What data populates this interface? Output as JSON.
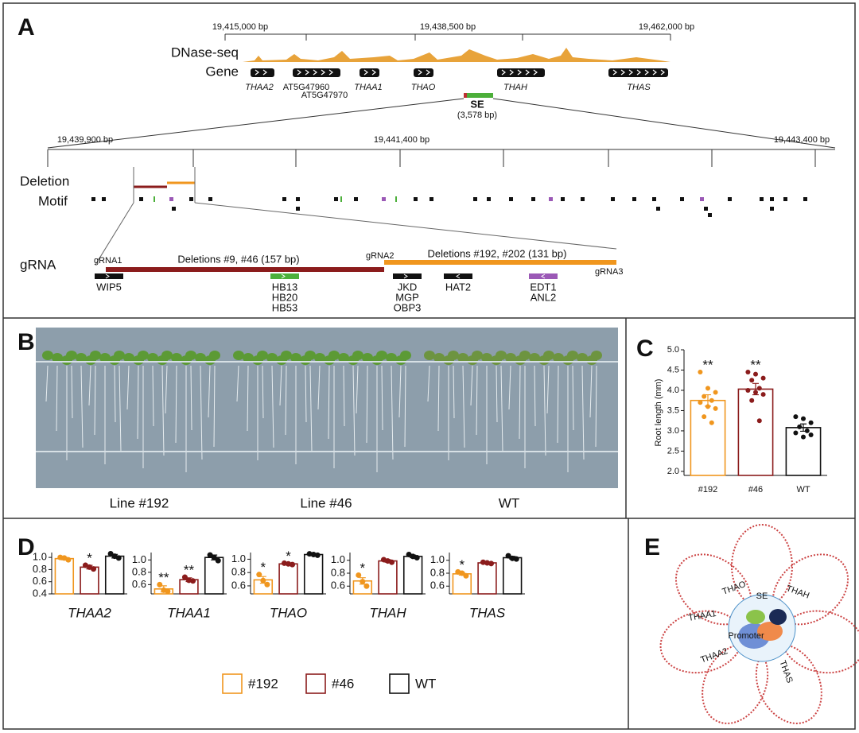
{
  "panel_labels": [
    "A",
    "B",
    "C",
    "D",
    "E"
  ],
  "panel_a": {
    "scale1": [
      "19,415,000 bp",
      "19,438,500 bp",
      "19,462,000 bp"
    ],
    "track_labels": [
      "DNase-seq",
      "Gene"
    ],
    "genes": [
      "THAA2",
      "AT5G47960",
      "AT5G47970",
      "THAA1",
      "THAO",
      "THAH",
      "THAS"
    ],
    "se": {
      "label": "SE",
      "size": "(3,578 bp)"
    },
    "scale2": [
      "19,439,900 bp",
      "19,441,400 bp",
      "19,443,400 bp"
    ],
    "row_labels": [
      "Deletion",
      "Motif",
      "gRNA"
    ],
    "grnas": [
      "gRNA1",
      "gRNA2",
      "gRNA3"
    ],
    "deletions": [
      "Deletions #9, #46 (157 bp)",
      "Deletions #192, #202 (131 bp)"
    ],
    "motifs": [
      [
        "WIP5"
      ],
      [
        "HB13",
        "HB20",
        "HB53"
      ],
      [
        "JKD",
        "MGP",
        "OBP3"
      ],
      [
        "HAT2"
      ],
      [
        "EDT1",
        "ANL2"
      ]
    ]
  },
  "panel_b": {
    "labels": [
      "Line #192",
      "Line #46",
      "WT"
    ]
  },
  "legend": [
    {
      "name": "#192",
      "color": "#f0961e"
    },
    {
      "name": "#46",
      "color": "#8b1c1c"
    },
    {
      "name": "WT",
      "color": "#111111"
    }
  ],
  "chart_data": [
    {
      "type": "bar",
      "categories": [
        "#192",
        "#46",
        "WT"
      ],
      "y_label": "Root length (mm)",
      "values": [
        3.75,
        4.03,
        3.08
      ],
      "errors": [
        0.14,
        0.14,
        0.09
      ],
      "points": [
        [
          4.45,
          4.05,
          3.95,
          3.85,
          3.75,
          3.7,
          3.6,
          3.55,
          3.35,
          3.2
        ],
        [
          4.45,
          4.4,
          4.3,
          4.25,
          4.05,
          4.0,
          3.95,
          3.9,
          3.75,
          3.25
        ],
        [
          3.35,
          3.3,
          3.2,
          3.1,
          3.0,
          2.95,
          2.85,
          2.9
        ]
      ],
      "annotations": [
        "**",
        "**",
        null
      ],
      "ylim": [
        1.9,
        5.0
      ],
      "yticks": [
        {
          "value": 2,
          "label": "2.0"
        },
        {
          "value": 2.5,
          "label": "2.5"
        },
        {
          "value": 3,
          "label": "3.0"
        },
        {
          "value": 3.5,
          "label": "3.5"
        },
        {
          "value": 4,
          "label": "4.0"
        },
        {
          "value": 4.5,
          "label": "4.5"
        },
        {
          "value": 5,
          "label": "5.0"
        }
      ]
    },
    {
      "type": "bar",
      "title": "THAA2",
      "categories": [
        null,
        null,
        null
      ],
      "values": [
        0.98,
        0.84,
        1.02
      ],
      "errors": [
        0.02,
        0.03,
        0.03
      ],
      "points": [
        [
          1.0,
          0.99,
          0.96
        ],
        [
          0.87,
          0.84,
          0.81
        ],
        [
          1.06,
          1.02,
          0.99
        ]
      ],
      "annotations": [
        null,
        "*",
        null
      ],
      "ylim": [
        0.4,
        1.08
      ],
      "yticks": [
        0.4,
        0.6,
        0.8,
        {
          "value": 1,
          "label": "1.0"
        }
      ]
    },
    {
      "type": "bar",
      "title": "THAA1",
      "categories": [
        null,
        null,
        null
      ],
      "values": [
        0.53,
        0.68,
        1.04
      ],
      "errors": [
        0.05,
        0.03,
        0.04
      ],
      "points": [
        [
          0.6,
          0.51,
          0.49
        ],
        [
          0.72,
          0.67,
          0.66
        ],
        [
          1.08,
          1.04,
          0.99
        ]
      ],
      "annotations": [
        "**",
        "**",
        null
      ],
      "ylim": [
        0.45,
        1.12
      ],
      "yticks": [
        0.6,
        0.8,
        {
          "value": 1,
          "label": "1.0"
        }
      ]
    },
    {
      "type": "bar",
      "title": "THAO",
      "categories": [
        null,
        null,
        null
      ],
      "values": [
        0.69,
        0.93,
        1.07
      ],
      "errors": [
        0.05,
        0.01,
        0.01
      ],
      "points": [
        [
          0.77,
          0.68,
          0.62
        ],
        [
          0.94,
          0.93,
          0.92
        ],
        [
          1.08,
          1.07,
          1.06
        ]
      ],
      "annotations": [
        "*",
        "*",
        null
      ],
      "ylim": [
        0.48,
        1.1
      ],
      "yticks": [
        0.6,
        0.8,
        {
          "value": 1,
          "label": "1.0"
        }
      ]
    },
    {
      "type": "bar",
      "title": "THAH",
      "categories": [
        null,
        null,
        null
      ],
      "values": [
        0.68,
        0.99,
        1.06
      ],
      "errors": [
        0.05,
        0.02,
        0.02
      ],
      "points": [
        [
          0.77,
          0.67,
          0.6
        ],
        [
          1.01,
          0.99,
          0.97
        ],
        [
          1.09,
          1.06,
          1.04
        ]
      ],
      "annotations": [
        "*",
        null,
        null
      ],
      "ylim": [
        0.48,
        1.12
      ],
      "yticks": [
        0.6,
        0.8,
        {
          "value": 1,
          "label": "1.0"
        }
      ]
    },
    {
      "type": "bar",
      "title": "THAS",
      "categories": [
        null,
        null,
        null
      ],
      "values": [
        0.79,
        0.96,
        1.04
      ],
      "errors": [
        0.02,
        0.01,
        0.02
      ],
      "points": [
        [
          0.82,
          0.8,
          0.76
        ],
        [
          0.97,
          0.96,
          0.95
        ],
        [
          1.07,
          1.03,
          1.02
        ]
      ],
      "annotations": [
        "*",
        null,
        null
      ],
      "ylim": [
        0.48,
        1.12
      ],
      "yticks": [
        0.6,
        0.8,
        {
          "value": 1,
          "label": "1.0"
        }
      ]
    }
  ],
  "panel_e": {
    "labels": [
      "THAO",
      "SE",
      "THAH",
      "THAA2",
      "THAA1",
      "THAS",
      "Promoter"
    ]
  }
}
